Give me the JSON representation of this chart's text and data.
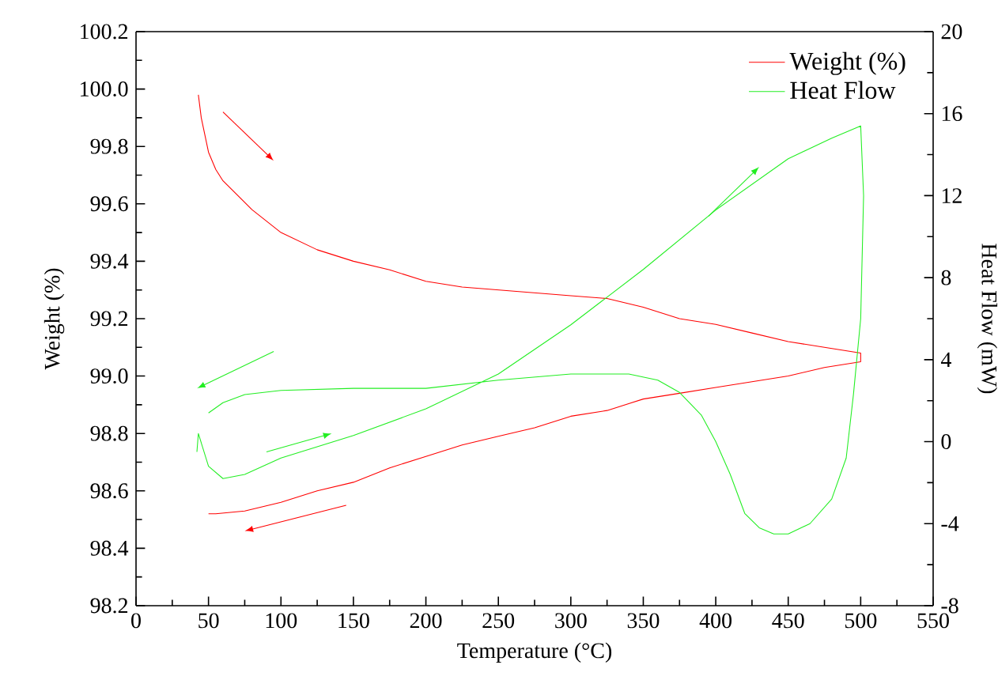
{
  "chart_data": {
    "type": "line",
    "xlabel": "Temperature (°C)",
    "ylabel": "Weight (%)",
    "y2label": "Heat Flow (mW)",
    "xlim": [
      0,
      550
    ],
    "xticks": [
      0,
      50,
      100,
      150,
      200,
      250,
      300,
      350,
      400,
      450,
      500,
      550
    ],
    "ylim": [
      98.2,
      100.2
    ],
    "yticks": [
      {
        "value": 98.2,
        "label": "98.2"
      },
      {
        "value": 98.4,
        "label": "98.4"
      },
      {
        "value": 98.6,
        "label": "98.6"
      },
      {
        "value": 98.8,
        "label": "98.8"
      },
      {
        "value": 99.0,
        "label": "99.0"
      },
      {
        "value": 99.2,
        "label": "99.2"
      },
      {
        "value": 99.4,
        "label": "99.4"
      },
      {
        "value": 99.6,
        "label": "99.6"
      },
      {
        "value": 99.8,
        "label": "99.8"
      },
      {
        "value": 100.0,
        "label": "100.0"
      },
      {
        "value": 100.2,
        "label": "100.2"
      }
    ],
    "y2lim": [
      -8,
      20
    ],
    "y2ticks": [
      -8,
      -4,
      0,
      4,
      8,
      12,
      16,
      20
    ],
    "legend": "top right",
    "grid": false,
    "marker": "none",
    "line_style": "solid",
    "series": [
      {
        "name": "Weight (%)",
        "color": "#ff0000",
        "x": [
          43,
          45,
          50,
          55,
          60,
          70,
          80,
          100,
          125,
          150,
          175,
          200,
          225,
          300,
          325,
          350,
          375,
          400,
          425,
          450,
          475,
          500,
          500,
          475,
          450,
          425,
          400,
          375,
          350,
          325,
          300,
          275,
          250,
          225,
          200,
          175,
          150,
          125,
          100,
          75,
          55,
          50
        ],
        "values": [
          99.98,
          99.9,
          99.78,
          99.72,
          99.68,
          99.63,
          99.58,
          99.5,
          99.44,
          99.4,
          99.37,
          99.33,
          99.31,
          99.28,
          99.27,
          99.24,
          99.2,
          99.18,
          99.15,
          99.12,
          99.1,
          99.08,
          99.05,
          99.03,
          99.0,
          98.98,
          98.96,
          98.94,
          98.92,
          98.88,
          98.86,
          98.82,
          98.79,
          98.76,
          98.72,
          98.68,
          98.63,
          98.6,
          98.56,
          98.53,
          98.52,
          98.52
        ]
      },
      {
        "name": "Heat Flow",
        "color": "#22ee22",
        "axis": "y2",
        "x": [
          42,
          43,
          50,
          60,
          75,
          100,
          150,
          200,
          250,
          300,
          350,
          400,
          450,
          480,
          500,
          502,
          500,
          495,
          490,
          480,
          465,
          450,
          440,
          430,
          420,
          410,
          400,
          390,
          375,
          360,
          340,
          300,
          250,
          200,
          150,
          100,
          75,
          60,
          50
        ],
        "values": [
          -0.5,
          0.4,
          -1.2,
          -1.8,
          -1.6,
          -0.8,
          0.3,
          1.6,
          3.3,
          5.7,
          8.4,
          11.3,
          13.8,
          14.8,
          15.4,
          12,
          6,
          2.3,
          -0.8,
          -2.8,
          -4,
          -4.5,
          -4.5,
          -4.2,
          -3.5,
          -1.6,
          0,
          1.3,
          2.4,
          3.0,
          3.3,
          3.3,
          3.0,
          2.6,
          2.6,
          2.5,
          2.3,
          1.9,
          1.4
        ]
      }
    ]
  }
}
